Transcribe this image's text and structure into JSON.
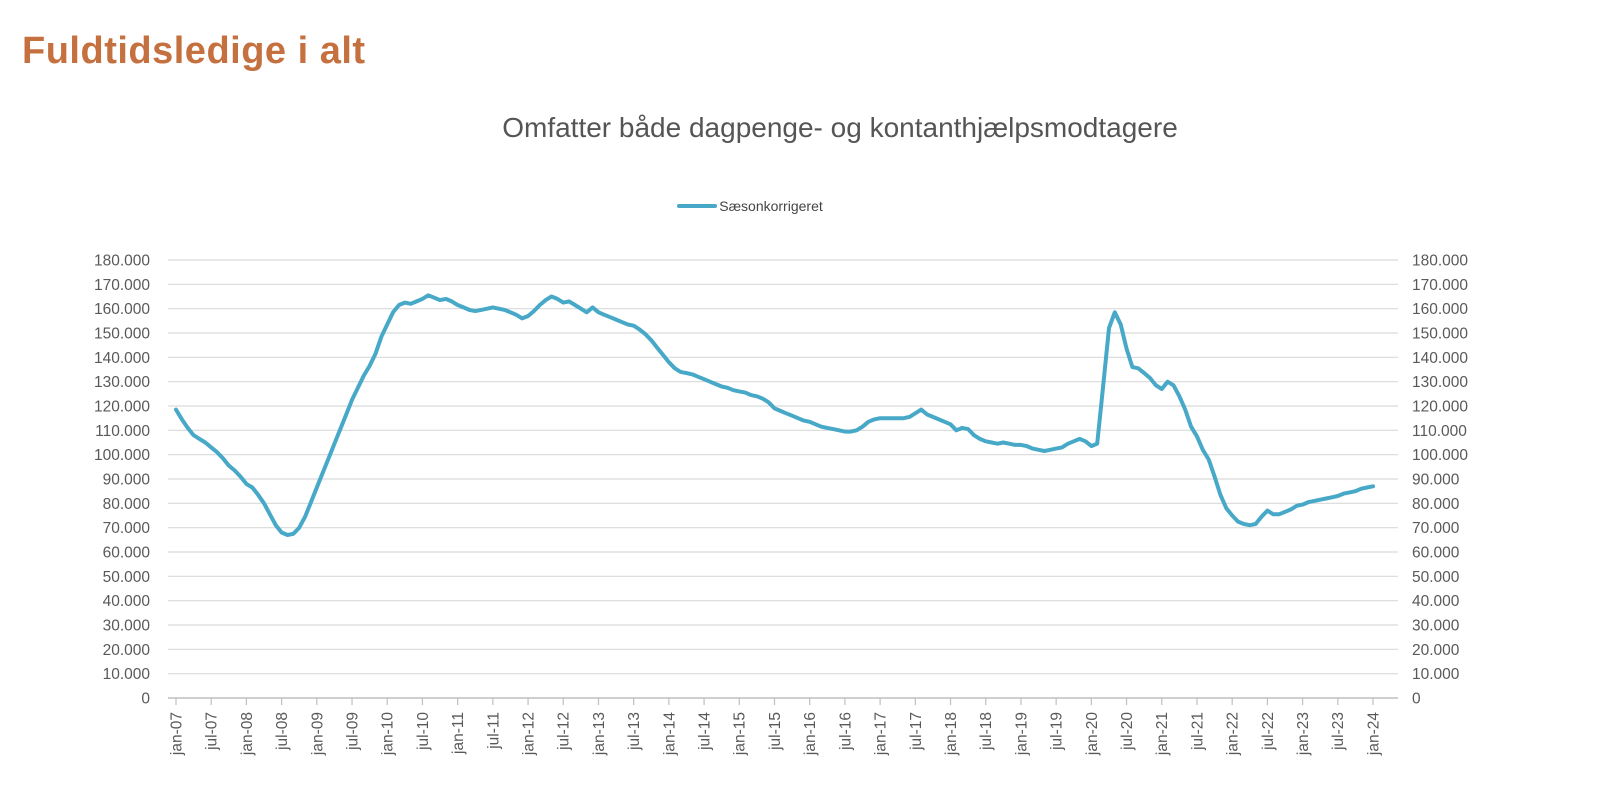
{
  "page": {
    "title": "Fuldtidsledige i alt"
  },
  "colors": {
    "title": "#C5703F",
    "subtitle": "#555555",
    "axis_text": "#595959",
    "grid": "#D9D9D9",
    "axis_line": "#BFBFBF",
    "series": "#47A9C7",
    "background": "#FFFFFF"
  },
  "legend": {
    "label": "Sæsonkorrigeret"
  },
  "chart_data": {
    "type": "line",
    "title": "Omfatter både dagpenge- og kontanthjælpsmodtagere",
    "xlabel": "",
    "ylabel": "",
    "ylim": [
      0,
      180000
    ],
    "y_tick_interval": 10000,
    "grid": "horizontal",
    "legend_position": "top-center",
    "y_axis_sides": [
      "left",
      "right"
    ],
    "y_tick_labels": [
      "0",
      "10.000",
      "20.000",
      "30.000",
      "40.000",
      "50.000",
      "60.000",
      "70.000",
      "80.000",
      "90.000",
      "100.000",
      "110.000",
      "120.000",
      "130.000",
      "140.000",
      "150.000",
      "160.000",
      "170.000",
      "180.000"
    ],
    "x_tick_labels": [
      "jan-07",
      "jul-07",
      "jan-08",
      "jul-08",
      "jan-09",
      "jul-09",
      "jan-10",
      "jul-10",
      "jan-11",
      "jul-11",
      "jan-12",
      "jul-12",
      "jan-13",
      "jul-13",
      "jan-14",
      "jul-14",
      "jan-15",
      "jul-15",
      "jan-16",
      "jul-16",
      "jan-17",
      "jul-17",
      "jan-18",
      "jul-18",
      "jan-19",
      "jul-19",
      "jan-20",
      "jul-20",
      "jan-21",
      "jul-21",
      "jan-22",
      "jul-22",
      "jan-23",
      "jul-23",
      "jan-24"
    ],
    "x_tick_every_n_months": 6,
    "series": [
      {
        "name": "Sæsonkorrigeret",
        "color": "#47A9C7",
        "frequency": "monthly",
        "x_start": "jan-07",
        "x_end": "jan-24",
        "values": [
          118500,
          114500,
          111000,
          108000,
          106500,
          105000,
          103000,
          101000,
          98500,
          95500,
          93500,
          91000,
          88000,
          86500,
          83500,
          80000,
          75500,
          71000,
          68000,
          67000,
          67500,
          70000,
          74500,
          80500,
          86500,
          92500,
          98500,
          104500,
          110500,
          116500,
          122500,
          127500,
          132500,
          136500,
          141500,
          148500,
          153500,
          158500,
          161500,
          162500,
          162000,
          163000,
          164000,
          165500,
          164500,
          163500,
          164000,
          163000,
          161500,
          160500,
          159500,
          159000,
          159500,
          160000,
          160500,
          160000,
          159500,
          158500,
          157500,
          156000,
          157000,
          159000,
          161500,
          163500,
          165000,
          164000,
          162500,
          163000,
          161500,
          160000,
          158500,
          160500,
          158500,
          157500,
          156500,
          155500,
          154500,
          153500,
          153000,
          151500,
          149500,
          147000,
          144000,
          141000,
          138000,
          135500,
          134000,
          133500,
          133000,
          132000,
          131000,
          130000,
          129000,
          128000,
          127500,
          126500,
          126000,
          125500,
          124500,
          124000,
          123000,
          121500,
          119000,
          118000,
          117000,
          116000,
          115000,
          114000,
          113500,
          112500,
          111500,
          111000,
          110500,
          110000,
          109500,
          109500,
          110000,
          111500,
          113500,
          114500,
          115000,
          115000,
          115000,
          115000,
          115000,
          115500,
          117000,
          118500,
          116500,
          115500,
          114500,
          113500,
          112500,
          110000,
          111000,
          110500,
          108000,
          106500,
          105500,
          105000,
          104500,
          105000,
          104500,
          104000,
          104000,
          103500,
          102500,
          102000,
          101500,
          102000,
          102500,
          103000,
          104500,
          105500,
          106500,
          105500,
          103500,
          104500,
          128000,
          152000,
          158500,
          153500,
          143500,
          136000,
          135500,
          133500,
          131500,
          128500,
          127000,
          130000,
          128500,
          124000,
          118500,
          111500,
          107500,
          102000,
          98000,
          91000,
          83500,
          78000,
          75000,
          72500,
          71500,
          71000,
          71500,
          74500,
          77000,
          75500,
          75500,
          76500,
          77500,
          79000,
          79500,
          80500,
          81000,
          81500,
          82000,
          82500,
          83000,
          84000,
          84500,
          85000,
          86000,
          86500,
          87000
        ]
      }
    ]
  }
}
